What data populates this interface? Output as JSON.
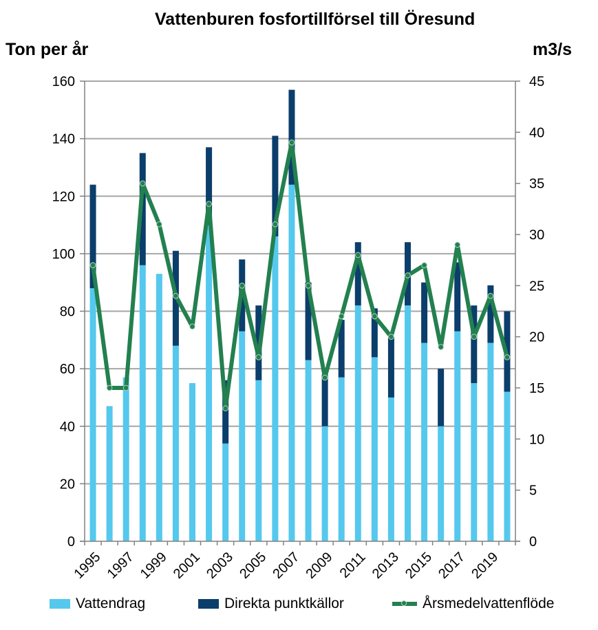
{
  "chart_data": {
    "type": "bar",
    "stacked": true,
    "title": "Vattenburen fosfortillförsel till Öresund",
    "ylabel_left": "Ton per år",
    "ylabel_right": "m3/s",
    "x": [
      1995,
      1996,
      1997,
      1998,
      1999,
      2000,
      2001,
      2002,
      2003,
      2004,
      2005,
      2006,
      2007,
      2008,
      2009,
      2010,
      2011,
      2012,
      2013,
      2014,
      2015,
      2016,
      2017,
      2018,
      2019,
      2020
    ],
    "x_tick_labels": [
      "1995",
      "1997",
      "1999",
      "2001",
      "2003",
      "2005",
      "2007",
      "2009",
      "2011",
      "2013",
      "2015",
      "2017",
      "2019"
    ],
    "ylim_left": [
      0,
      160
    ],
    "yticks_left": [
      "0",
      "20",
      "40",
      "60",
      "80",
      "100",
      "120",
      "140",
      "160"
    ],
    "ylim_right": [
      0,
      45
    ],
    "yticks_right": [
      "0",
      "5",
      "10",
      "15",
      "20",
      "25",
      "30",
      "35",
      "40",
      "45"
    ],
    "grid": true,
    "series": [
      {
        "name": "Vattendrag",
        "kind": "bar",
        "axis": "left",
        "color": "#55c8ee",
        "values": [
          88,
          47,
          57,
          96,
          93,
          68,
          55,
          110,
          34,
          73,
          56,
          106,
          124,
          63,
          40,
          57,
          82,
          64,
          50,
          82,
          69,
          40,
          73,
          55,
          69,
          52
        ]
      },
      {
        "name": "Direkta punktkällor",
        "kind": "bar",
        "axis": "left",
        "color": "#0b3e6b",
        "values": [
          36,
          0,
          0,
          39,
          0,
          33,
          0,
          27,
          22,
          25,
          26,
          35,
          33,
          27,
          18,
          20,
          22,
          17,
          21,
          22,
          21,
          20,
          24,
          27,
          20,
          28
        ]
      },
      {
        "name": "Årsmedelvattenflöde",
        "kind": "line",
        "axis": "right",
        "color": "#23804f",
        "values": [
          27,
          15,
          15,
          35,
          31,
          24,
          21,
          33,
          13,
          25,
          18,
          31,
          39,
          25,
          16,
          22,
          28,
          22,
          20,
          26,
          27,
          19,
          29,
          20,
          24,
          18
        ]
      }
    ],
    "legend": [
      "Vattendrag",
      "Direkta punktkällor",
      "Årsmedelvattenflöde"
    ],
    "legend_position": "bottom"
  }
}
